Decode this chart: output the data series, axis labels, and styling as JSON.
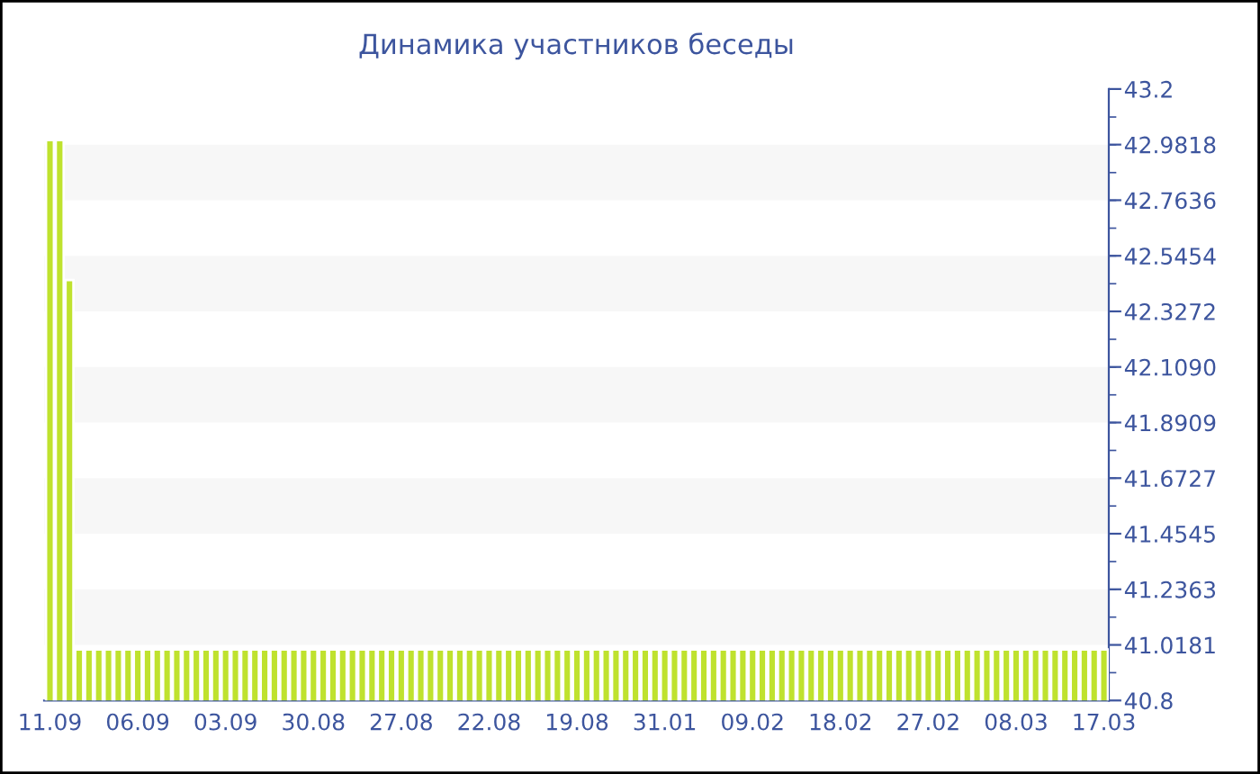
{
  "chart_data": {
    "type": "bar",
    "title": "Динамика участников беседы",
    "categories": [
      "11.09",
      null,
      null,
      null,
      null,
      null,
      null,
      null,
      null,
      "06.09",
      null,
      null,
      null,
      null,
      null,
      null,
      null,
      null,
      "03.09",
      null,
      null,
      null,
      null,
      null,
      null,
      null,
      null,
      "30.08",
      null,
      null,
      null,
      null,
      null,
      null,
      null,
      null,
      "27.08",
      null,
      null,
      null,
      null,
      null,
      null,
      null,
      null,
      "22.08",
      null,
      null,
      null,
      null,
      null,
      null,
      null,
      null,
      "19.08",
      null,
      null,
      null,
      null,
      null,
      null,
      null,
      null,
      "31.01",
      null,
      null,
      null,
      null,
      null,
      null,
      null,
      null,
      "09.02",
      null,
      null,
      null,
      null,
      null,
      null,
      null,
      null,
      "18.02",
      null,
      null,
      null,
      null,
      null,
      null,
      null,
      null,
      "27.02",
      null,
      null,
      null,
      null,
      null,
      null,
      null,
      null,
      "08.03",
      null,
      null,
      null,
      null,
      null,
      null,
      null,
      null,
      "17.03"
    ],
    "values": [
      43,
      43,
      42.45,
      41,
      41,
      41,
      41,
      41,
      41,
      41,
      41,
      41,
      41,
      41,
      41,
      41,
      41,
      41,
      41,
      41,
      41,
      41,
      41,
      41,
      41,
      41,
      41,
      41,
      41,
      41,
      41,
      41,
      41,
      41,
      41,
      41,
      41,
      41,
      41,
      41,
      41,
      41,
      41,
      41,
      41,
      41,
      41,
      41,
      41,
      41,
      41,
      41,
      41,
      41,
      41,
      41,
      41,
      41,
      41,
      41,
      41,
      41,
      41,
      41,
      41,
      41,
      41,
      41,
      41,
      41,
      41,
      41,
      41,
      41,
      41,
      41,
      41,
      41,
      41,
      41,
      41,
      41,
      41,
      41,
      41,
      41,
      41,
      41,
      41,
      41,
      41,
      41,
      41,
      41,
      41,
      41,
      41,
      41,
      41,
      41,
      41,
      41,
      41,
      41,
      41,
      41,
      41,
      41,
      41
    ],
    "color": "#bfe22e",
    "ylim": [
      40.8,
      43.2
    ],
    "yticks": [
      40.8,
      41.0181,
      41.2363,
      41.4545,
      41.6727,
      41.8909,
      {
        "value": 42.109,
        "label": "42.1090"
      },
      42.3272,
      42.5454,
      42.7636,
      42.9818,
      43.2
    ],
    "bands": [
      {
        "axis": "y",
        "from": 41.0181,
        "to": 41.2363,
        "color": "#f7f7f7"
      },
      {
        "axis": "y",
        "from": 41.4545,
        "to": 41.6727,
        "color": "#f7f7f7"
      },
      {
        "axis": "y",
        "from": 41.8909,
        "to": 42.109,
        "color": "#f7f7f7"
      },
      {
        "axis": "y",
        "from": 42.3272,
        "to": 42.5454,
        "color": "#f7f7f7"
      },
      {
        "axis": "y",
        "from": 42.7636,
        "to": 42.9818,
        "color": "#f7f7f7"
      }
    ],
    "grid": false,
    "legend": false
  }
}
